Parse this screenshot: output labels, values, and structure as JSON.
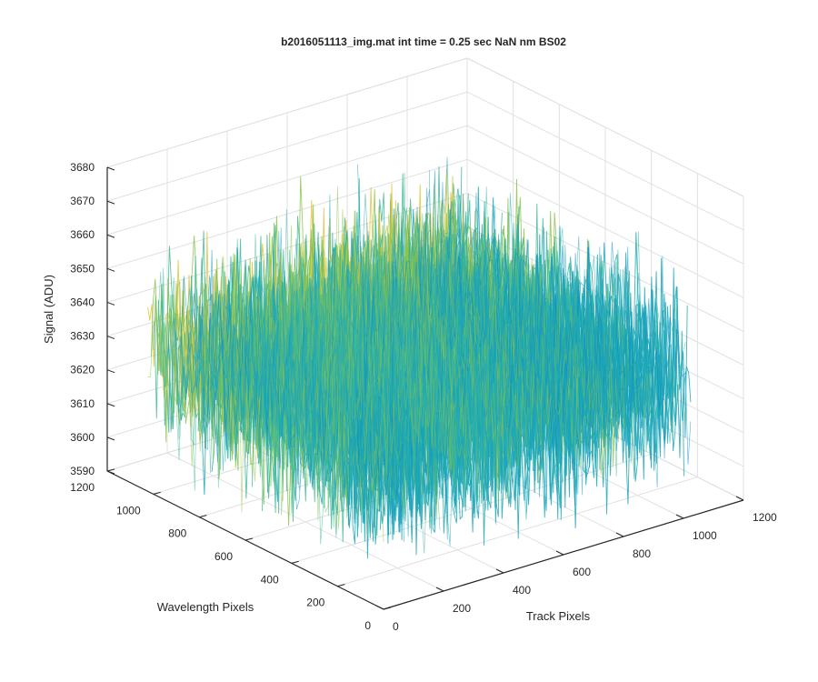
{
  "chart_data": {
    "type": "surface",
    "title": "b2016051113_img.mat int time = 0.25 sec  NaN nm BS02",
    "xlabel": "Track Pixels",
    "ylabel": "Wavelength Pixels",
    "zlabel": "Signal (ADU)",
    "xlim": [
      0,
      1200
    ],
    "ylim": [
      0,
      1200
    ],
    "zlim": [
      3590,
      3680
    ],
    "xticks": [
      "0",
      "200",
      "400",
      "600",
      "800",
      "1000",
      "1200"
    ],
    "yticks": [
      "0",
      "200",
      "400",
      "600",
      "800",
      "1000",
      "1200"
    ],
    "zticks": [
      "3590",
      "3600",
      "3610",
      "3620",
      "3630",
      "3640",
      "3650",
      "3660",
      "3670",
      "3680"
    ],
    "surface": {
      "x_extent": [
        0,
        1024
      ],
      "y_extent": [
        0,
        1024
      ],
      "mean_signal": 3631,
      "noise_range": [
        3595,
        3675
      ]
    },
    "grid": true,
    "colormap": [
      "#0a8cc8",
      "#1aa6b8",
      "#3fb89a",
      "#8cc34a",
      "#dcc43a"
    ]
  }
}
